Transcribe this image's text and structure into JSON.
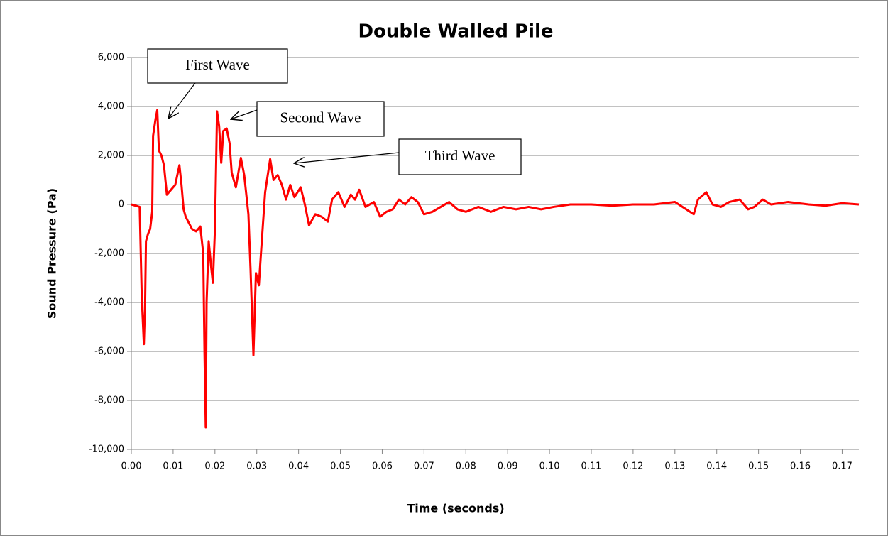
{
  "chart_data": {
    "type": "line",
    "title": "Double Walled Pile",
    "x_label": "Time (seconds)",
    "y_label": "Sound Pressure (Pa)",
    "xlim": [
      0,
      0.174
    ],
    "ylim": [
      -10000,
      6000
    ],
    "xticks": [
      {
        "value": 0,
        "label": "0.00"
      },
      {
        "value": 0.01,
        "label": "0.01"
      },
      {
        "value": 0.02,
        "label": "0.02"
      },
      {
        "value": 0.03,
        "label": "0.03"
      },
      {
        "value": 0.04,
        "label": "0.04"
      },
      {
        "value": 0.05,
        "label": "0.05"
      },
      {
        "value": 0.06,
        "label": "0.06"
      },
      {
        "value": 0.07,
        "label": "0.07"
      },
      {
        "value": 0.08,
        "label": "0.08"
      },
      {
        "value": 0.09,
        "label": "0.09"
      },
      {
        "value": 0.1,
        "label": "0.10"
      },
      {
        "value": 0.11,
        "label": "0.11"
      },
      {
        "value": 0.12,
        "label": "0.12"
      },
      {
        "value": 0.13,
        "label": "0.13"
      },
      {
        "value": 0.14,
        "label": "0.14"
      },
      {
        "value": 0.15,
        "label": "0.15"
      },
      {
        "value": 0.16,
        "label": "0.16"
      },
      {
        "value": 0.17,
        "label": "0.17"
      }
    ],
    "yticks": [
      {
        "value": -10000,
        "label": "-10,000"
      },
      {
        "value": -8000,
        "label": "-8,000"
      },
      {
        "value": -6000,
        "label": "-6,000"
      },
      {
        "value": -4000,
        "label": "-4,000"
      },
      {
        "value": -2000,
        "label": "-2,000"
      },
      0,
      {
        "value": 2000,
        "label": "2,000"
      },
      {
        "value": 4000,
        "label": "4,000"
      },
      {
        "value": 6000,
        "label": "6,000"
      }
    ],
    "grid": true,
    "annotations": [
      "First Wave",
      "Second Wave",
      "Third Wave"
    ],
    "x": [
      0,
      0.002,
      0.0025,
      0.003,
      0.0033,
      0.0035,
      0.004,
      0.0045,
      0.005,
      0.0052,
      0.0058,
      0.0062,
      0.0066,
      0.0072,
      0.0078,
      0.0085,
      0.009,
      0.0105,
      0.0115,
      0.012,
      0.0125,
      0.013,
      0.0145,
      0.0155,
      0.0165,
      0.0172,
      0.0175,
      0.0178,
      0.018,
      0.0185,
      0.019,
      0.0195,
      0.02,
      0.0205,
      0.021,
      0.0215,
      0.022,
      0.0228,
      0.0235,
      0.024,
      0.025,
      0.0262,
      0.027,
      0.028,
      0.0285,
      0.0292,
      0.0298,
      0.0305,
      0.031,
      0.032,
      0.0332,
      0.034,
      0.035,
      0.036,
      0.037,
      0.038,
      0.039,
      0.0405,
      0.0415,
      0.0425,
      0.044,
      0.0455,
      0.047,
      0.048,
      0.0495,
      0.051,
      0.0525,
      0.0535,
      0.0545,
      0.056,
      0.058,
      0.0595,
      0.061,
      0.0625,
      0.064,
      0.0655,
      0.067,
      0.0685,
      0.07,
      0.072,
      0.074,
      0.076,
      0.078,
      0.08,
      0.083,
      0.086,
      0.089,
      0.092,
      0.095,
      0.098,
      0.101,
      0.105,
      0.11,
      0.115,
      0.12,
      0.125,
      0.13,
      0.1345,
      0.1355,
      0.1375,
      0.139,
      0.141,
      0.143,
      0.1455,
      0.1475,
      0.149,
      0.151,
      0.153,
      0.157,
      0.162,
      0.166,
      0.17,
      0.174
    ],
    "series": [
      {
        "color": "#ff0000",
        "values": [
          0,
          -100,
          -3800,
          -5700,
          -4000,
          -1500,
          -1200,
          -1000,
          -300,
          2800,
          3500,
          3850,
          2200,
          2000,
          1600,
          400,
          500,
          800,
          1600,
          800,
          -200,
          -500,
          -1000,
          -1100,
          -900,
          -2000,
          -6000,
          -9100,
          -4000,
          -1500,
          -2400,
          -3200,
          -1000,
          3800,
          3200,
          1700,
          3000,
          3100,
          2500,
          1300,
          700,
          1900,
          1200,
          -400,
          -2600,
          -6150,
          -2800,
          -3300,
          -2000,
          500,
          1850,
          1000,
          1200,
          800,
          200,
          800,
          300,
          700,
          0,
          -850,
          -400,
          -500,
          -700,
          200,
          500,
          -100,
          400,
          200,
          600,
          -100,
          100,
          -500,
          -300,
          -200,
          200,
          0,
          300,
          100,
          -400,
          -300,
          -100,
          100,
          -200,
          -300,
          -100,
          -300,
          -100,
          -200,
          -100,
          -200,
          -100,
          0,
          0,
          -50,
          0,
          0,
          100,
          -400,
          200,
          500,
          0,
          -100,
          100,
          200,
          -200,
          -100,
          200,
          0,
          100,
          0,
          -50,
          50,
          0
        ]
      }
    ]
  }
}
